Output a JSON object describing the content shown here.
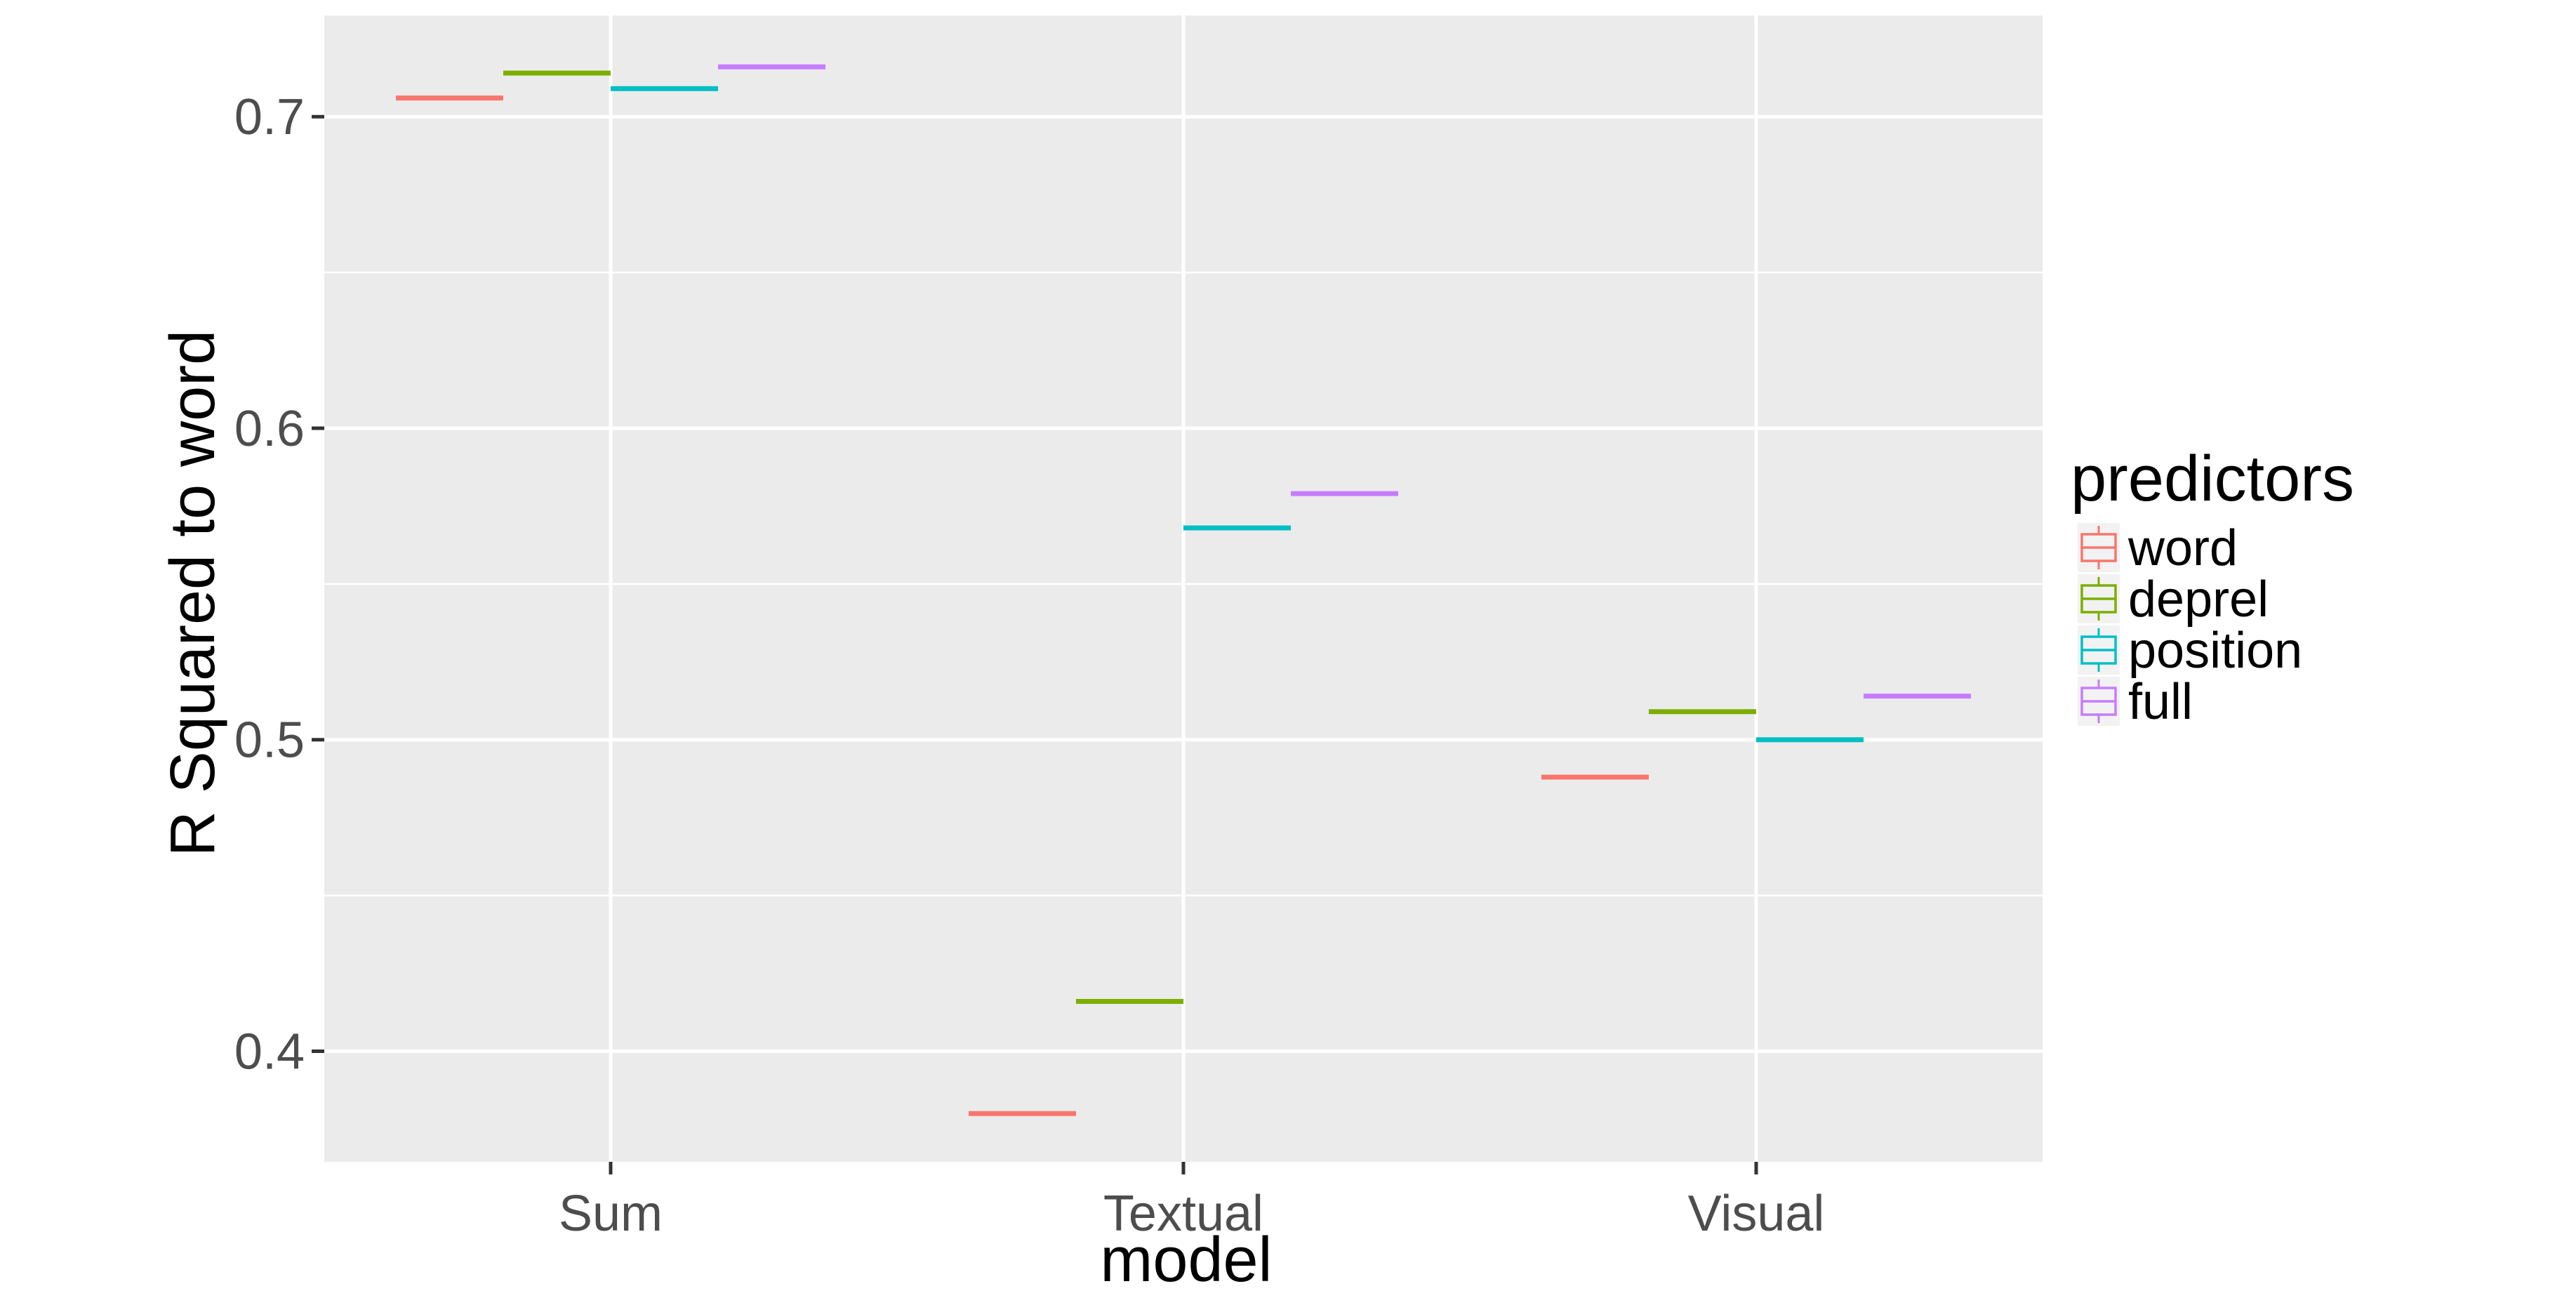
{
  "chart_data": {
    "type": "boxplot",
    "categories": [
      "Sum",
      "Textual",
      "Visual"
    ],
    "series": [
      {
        "name": "word",
        "color": "#F8766D",
        "values": [
          0.706,
          0.38,
          0.488
        ]
      },
      {
        "name": "deprel",
        "color": "#7CAE00",
        "values": [
          0.714,
          0.416,
          0.509
        ]
      },
      {
        "name": "position",
        "color": "#00BFC4",
        "values": [
          0.709,
          0.568,
          0.5
        ]
      },
      {
        "name": "full",
        "color": "#C77CFF",
        "values": [
          0.716,
          0.579,
          0.514
        ]
      }
    ],
    "xlabel": "model",
    "ylabel": "R Squared to word",
    "yticks": [
      0.4,
      0.5,
      0.6,
      0.7
    ],
    "ytick_labels": [
      "0.4",
      "0.5",
      "0.6",
      "0.7"
    ],
    "ylim": [
      0.3645,
      0.7325
    ],
    "legend_title": "predictors",
    "legend_position": "right",
    "grid": true,
    "panel_background": "#EBEBEB",
    "grid_color": "#FFFFFF"
  }
}
